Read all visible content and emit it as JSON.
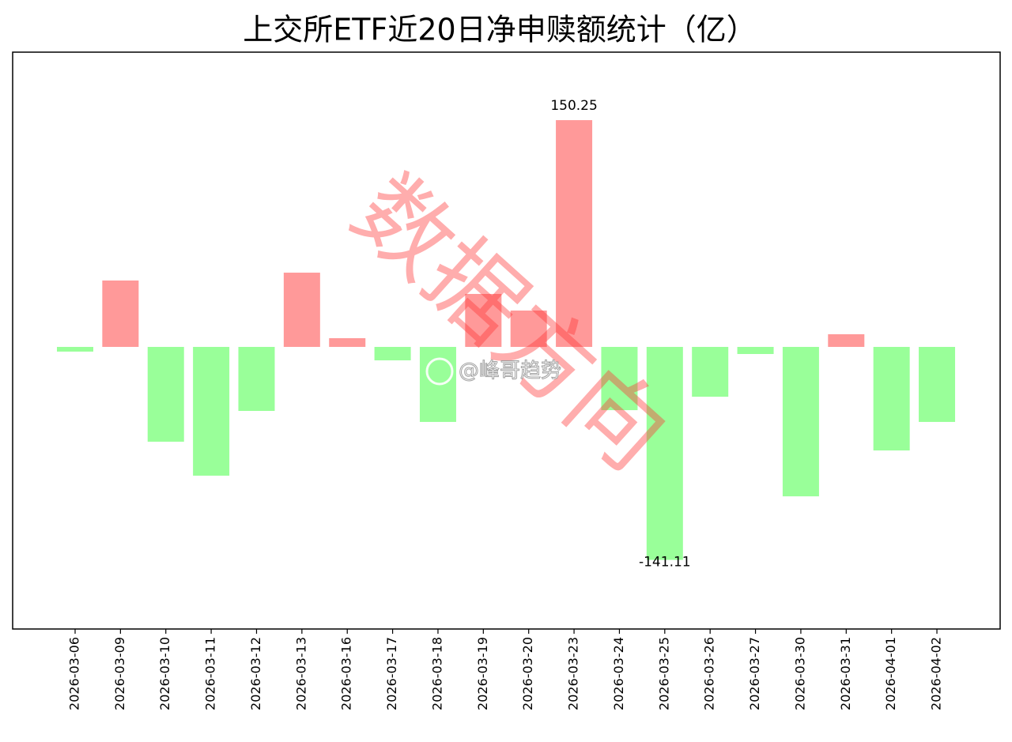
{
  "chart_data": {
    "type": "bar",
    "title": "上交所ETF近20日净申赎额统计（亿）",
    "categories": [
      "2026-03-06",
      "2026-03-09",
      "2026-03-10",
      "2026-03-11",
      "2026-03-12",
      "2026-03-13",
      "2026-03-16",
      "2026-03-17",
      "2026-03-18",
      "2026-03-19",
      "2026-03-20",
      "2026-03-23",
      "2026-03-24",
      "2026-03-25",
      "2026-03-26",
      "2026-03-27",
      "2026-03-30",
      "2026-03-31",
      "2026-04-01",
      "2026-04-02"
    ],
    "values": [
      -3.1,
      44.0,
      -62.8,
      -85.3,
      -42.4,
      49.2,
      5.8,
      -8.9,
      -49.7,
      35.1,
      24.1,
      150.25,
      -41.9,
      -141.11,
      -33.0,
      -4.7,
      -99.0,
      8.4,
      -68.6,
      -49.7
    ],
    "positive_color": "#ff9999",
    "negative_color": "#99ff99",
    "ylim": [
      -186.9,
      195.3
    ],
    "watermarks": [
      "数据方向",
      "@峰哥趋势"
    ]
  }
}
